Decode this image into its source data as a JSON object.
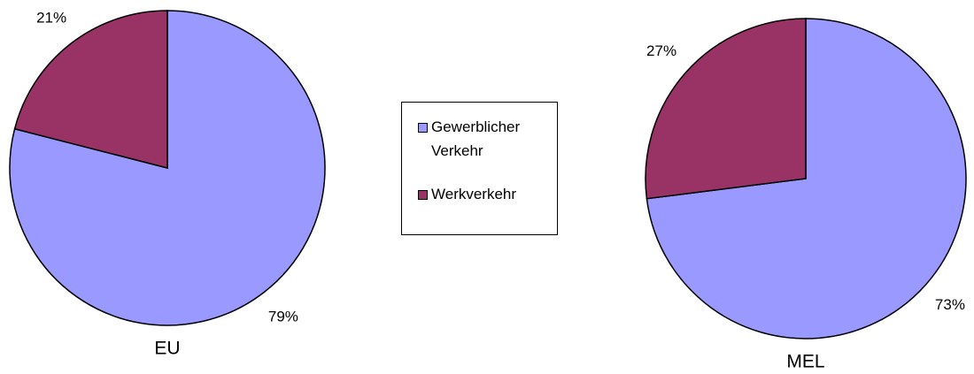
{
  "chart_data": [
    {
      "type": "pie",
      "title": "EU",
      "categories": [
        "Gewerblicher Verkehr",
        "Werkverkehr"
      ],
      "values": [
        79,
        21
      ],
      "value_labels": [
        "79%",
        "21%"
      ],
      "colors": [
        "#9999ff",
        "#993366"
      ],
      "legend": "center"
    },
    {
      "type": "pie",
      "title": "MEL",
      "categories": [
        "Gewerblicher Verkehr",
        "Werkverkehr"
      ],
      "values": [
        73,
        27
      ],
      "value_labels": [
        "73%",
        "27%"
      ],
      "colors": [
        "#9999ff",
        "#993366"
      ],
      "legend": "center"
    }
  ]
}
